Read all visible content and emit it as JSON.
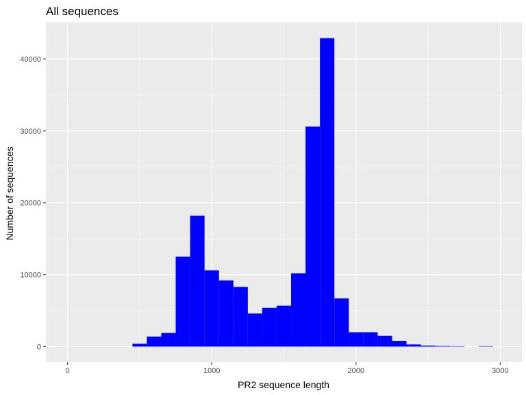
{
  "chart_data": {
    "type": "bar",
    "title": "All sequences",
    "xlabel": "PR2 sequence length",
    "ylabel": "Number of sequences",
    "xlim": [
      -150,
      3150
    ],
    "ylim": [
      -2150,
      45150
    ],
    "x_ticks": [
      0,
      1000,
      2000,
      3000
    ],
    "y_ticks": [
      0,
      10000,
      20000,
      30000,
      40000
    ],
    "x_tick_labels": [
      "0",
      "1000",
      "2000",
      "3000"
    ],
    "y_tick_labels": [
      "0",
      "10000",
      "20000",
      "30000",
      "40000"
    ],
    "grid": true,
    "background": "#ebebeb",
    "grid_color": "#ffffff",
    "bar_color": "#0000ff",
    "bin_width": 100,
    "bins": [
      {
        "x0": 450,
        "x1": 550,
        "value": 400
      },
      {
        "x0": 550,
        "x1": 650,
        "value": 1400
      },
      {
        "x0": 650,
        "x1": 750,
        "value": 1900
      },
      {
        "x0": 750,
        "x1": 850,
        "value": 12500
      },
      {
        "x0": 850,
        "x1": 950,
        "value": 18200
      },
      {
        "x0": 950,
        "x1": 1050,
        "value": 10600
      },
      {
        "x0": 1050,
        "x1": 1150,
        "value": 9200
      },
      {
        "x0": 1150,
        "x1": 1250,
        "value": 8300
      },
      {
        "x0": 1250,
        "x1": 1350,
        "value": 4600
      },
      {
        "x0": 1350,
        "x1": 1450,
        "value": 5400
      },
      {
        "x0": 1450,
        "x1": 1550,
        "value": 5700
      },
      {
        "x0": 1550,
        "x1": 1650,
        "value": 10200
      },
      {
        "x0": 1650,
        "x1": 1750,
        "value": 30600
      },
      {
        "x0": 1750,
        "x1": 1850,
        "value": 42900
      },
      {
        "x0": 1850,
        "x1": 1950,
        "value": 6700
      },
      {
        "x0": 1950,
        "x1": 2050,
        "value": 2000
      },
      {
        "x0": 2050,
        "x1": 2150,
        "value": 2000
      },
      {
        "x0": 2150,
        "x1": 2250,
        "value": 1500
      },
      {
        "x0": 2250,
        "x1": 2350,
        "value": 800
      },
      {
        "x0": 2350,
        "x1": 2450,
        "value": 300
      },
      {
        "x0": 2450,
        "x1": 2550,
        "value": 150
      },
      {
        "x0": 2550,
        "x1": 2650,
        "value": 80
      },
      {
        "x0": 2650,
        "x1": 2750,
        "value": 50
      },
      {
        "x0": 2750,
        "x1": 2850,
        "value": 0
      },
      {
        "x0": 2850,
        "x1": 2950,
        "value": 60
      }
    ]
  }
}
